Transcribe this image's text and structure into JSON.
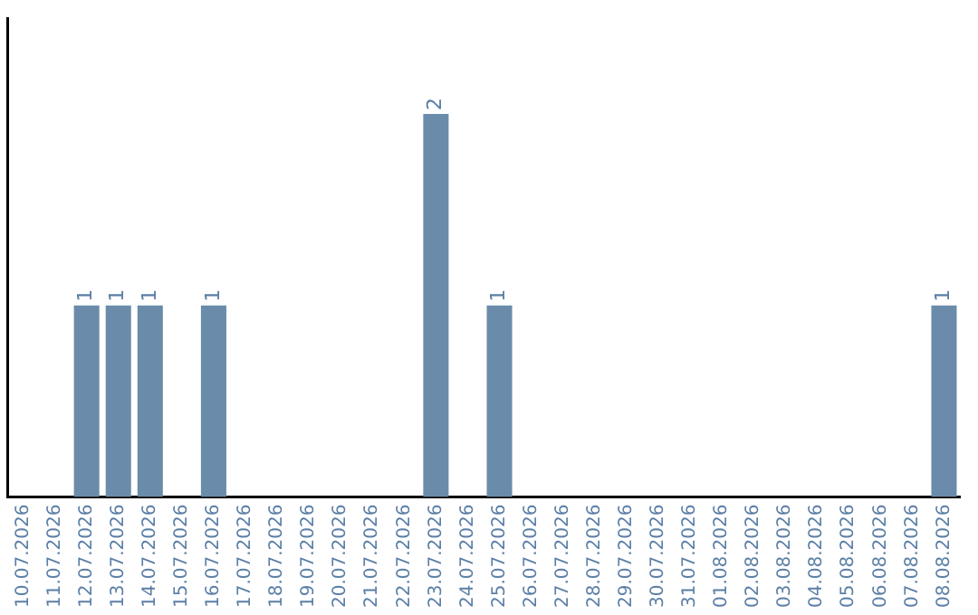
{
  "chart_data": {
    "type": "bar",
    "categories": [
      "10.07.2026",
      "11.07.2026",
      "12.07.2026",
      "13.07.2026",
      "14.07.2026",
      "15.07.2026",
      "16.07.2026",
      "17.07.2026",
      "18.07.2026",
      "19.07.2026",
      "20.07.2026",
      "21.07.2026",
      "22.07.2026",
      "23.07.2026",
      "24.07.2026",
      "25.07.2026",
      "26.07.2026",
      "27.07.2026",
      "28.07.2026",
      "29.07.2026",
      "30.07.2026",
      "31.07.2026",
      "01.08.2026",
      "02.08.2026",
      "03.08.2026",
      "04.08.2026",
      "05.08.2026",
      "06.08.2026",
      "07.08.2026",
      "08.08.2026"
    ],
    "values": [
      0,
      0,
      1,
      1,
      1,
      0,
      1,
      0,
      0,
      0,
      0,
      0,
      0,
      2,
      0,
      1,
      0,
      0,
      0,
      0,
      0,
      0,
      0,
      0,
      0,
      0,
      0,
      0,
      0,
      1
    ],
    "value_labels": [
      null,
      null,
      "1",
      "1",
      "1",
      null,
      "1",
      null,
      null,
      null,
      null,
      null,
      null,
      "2",
      null,
      "1",
      null,
      null,
      null,
      null,
      null,
      null,
      null,
      null,
      null,
      null,
      null,
      null,
      null,
      "1"
    ],
    "color": "#6a8caa",
    "grid": false,
    "legend": false
  }
}
